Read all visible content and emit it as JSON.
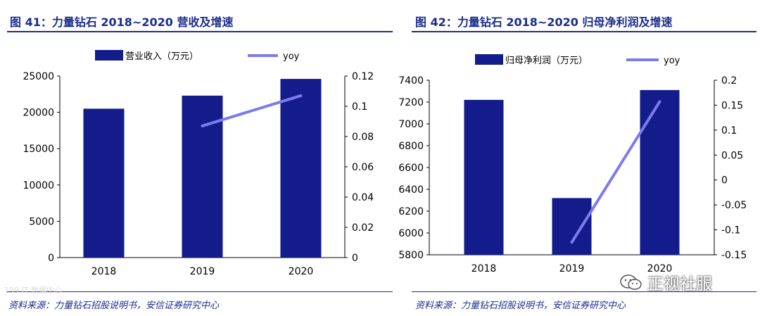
{
  "figures": [
    {
      "title": "图 41：力量钻石 2018~2020 营收及增速",
      "source": "资料来源：力量钻石招股说明书，安信证券研究中心"
    },
    {
      "title": "图 42：力量钻石 2018~2020 归母净利润及增速",
      "source": "资料来源：力量钻石招股说明书，安信证券研究中心"
    }
  ],
  "chart_data": [
    {
      "type": "bar",
      "title": "力量钻石 2018~2020 营收及增速",
      "categories": [
        "2018",
        "2019",
        "2020"
      ],
      "series": [
        {
          "name": "营业收入（万元）",
          "type": "bar",
          "axis": "left",
          "values": [
            20500,
            22300,
            24600
          ]
        },
        {
          "name": "yoy",
          "type": "line",
          "axis": "right",
          "values": [
            null,
            0.087,
            0.107
          ]
        }
      ],
      "y_left": {
        "min": 0,
        "max": 25000,
        "ticks": [
          "0",
          "5000",
          "10000",
          "15000",
          "20000",
          "25000"
        ]
      },
      "y_right": {
        "min": 0,
        "max": 0.12,
        "ticks": [
          "0",
          "0.02",
          "0.04",
          "0.06",
          "0.08",
          "0.1",
          "0.12"
        ]
      },
      "legend": [
        "营业收入（万元）",
        "yoy"
      ],
      "colors": {
        "bar": "#141b8a",
        "line": "#7b7bf0"
      }
    },
    {
      "type": "bar",
      "title": "力量钻石 2018~2020 归母净利润及增速",
      "categories": [
        "2018",
        "2019",
        "2020"
      ],
      "series": [
        {
          "name": "归母净利润（万元）",
          "type": "bar",
          "axis": "left",
          "values": [
            7220,
            6320,
            7310
          ]
        },
        {
          "name": "yoy",
          "type": "line",
          "axis": "right",
          "values": [
            null,
            -0.125,
            0.157
          ]
        }
      ],
      "y_left": {
        "min": 5800,
        "max": 7400,
        "ticks": [
          "5800",
          "6000",
          "6200",
          "6400",
          "6600",
          "6800",
          "7000",
          "7200",
          "7400"
        ]
      },
      "y_right": {
        "min": -0.15,
        "max": 0.2,
        "ticks": [
          "-0.15",
          "-0.1",
          "-0.05",
          "0",
          "0.05",
          "0.1",
          "0.15",
          "0.2"
        ]
      },
      "legend": [
        "归母净利润（万元）",
        "yoy"
      ],
      "colors": {
        "bar": "#141b8a",
        "line": "#7b7bf0"
      }
    }
  ],
  "watermark": {
    "text": "正视社服",
    "small_text": "199 IT 数据中心"
  }
}
